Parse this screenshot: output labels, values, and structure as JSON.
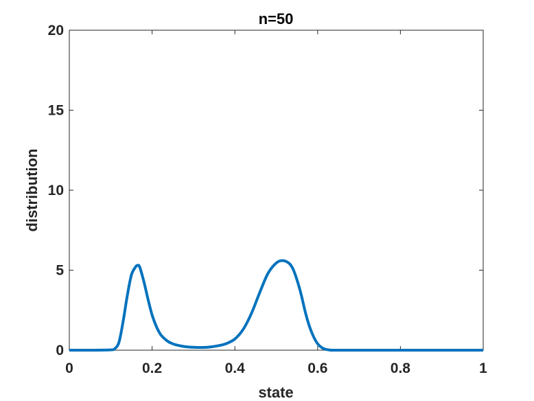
{
  "chart_data": {
    "type": "line",
    "title": "n=50",
    "xlabel": "state",
    "ylabel": "distribution",
    "xlim": [
      0,
      1
    ],
    "ylim": [
      0,
      20
    ],
    "xticks": [
      0,
      0.2,
      0.4,
      0.6,
      0.8,
      1
    ],
    "xtick_labels": [
      "0",
      "0.2",
      "0.4",
      "0.6",
      "0.8",
      "1"
    ],
    "yticks": [
      0,
      5,
      10,
      15,
      20
    ],
    "ytick_labels": [
      "0",
      "5",
      "10",
      "15",
      "20"
    ],
    "grid": false,
    "series": [
      {
        "color": "#0072BD",
        "x": [
          0,
          0.05,
          0.1,
          0.11,
          0.12,
          0.13,
          0.14,
          0.15,
          0.16,
          0.165,
          0.17,
          0.18,
          0.19,
          0.2,
          0.21,
          0.22,
          0.23,
          0.24,
          0.25,
          0.26,
          0.28,
          0.3,
          0.32,
          0.34,
          0.36,
          0.38,
          0.4,
          0.42,
          0.44,
          0.46,
          0.48,
          0.5,
          0.515,
          0.53,
          0.54,
          0.55,
          0.56,
          0.57,
          0.58,
          0.59,
          0.6,
          0.61,
          0.62,
          0.63,
          0.64,
          0.7,
          0.8,
          0.9,
          1.0
        ],
        "y": [
          0,
          0,
          0.02,
          0.1,
          0.5,
          1.8,
          3.4,
          4.7,
          5.2,
          5.3,
          5.2,
          4.3,
          3.2,
          2.2,
          1.5,
          1.0,
          0.72,
          0.52,
          0.4,
          0.32,
          0.22,
          0.18,
          0.17,
          0.2,
          0.28,
          0.42,
          0.7,
          1.3,
          2.3,
          3.6,
          4.8,
          5.45,
          5.6,
          5.45,
          5.1,
          4.4,
          3.5,
          2.4,
          1.5,
          0.85,
          0.4,
          0.16,
          0.05,
          0.01,
          0,
          0,
          0,
          0,
          0
        ]
      }
    ]
  }
}
